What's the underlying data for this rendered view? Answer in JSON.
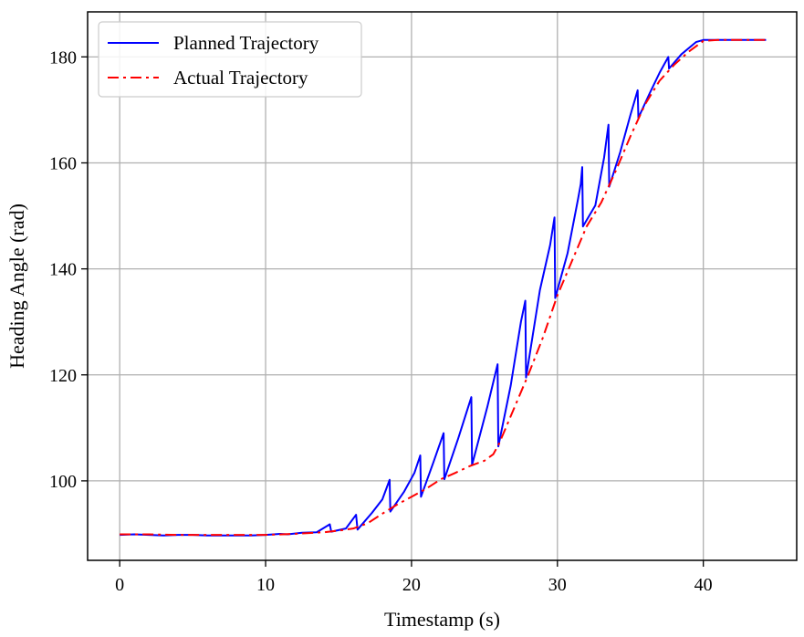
{
  "chart_data": {
    "type": "line",
    "title": "",
    "xlabel": "Timestamp (s)",
    "ylabel": "Heading Angle (rad)",
    "xlim": [
      -2.2,
      46.4
    ],
    "ylim": [
      85,
      188.5
    ],
    "xticks": [
      0,
      10,
      20,
      30,
      40
    ],
    "yticks": [
      100,
      120,
      140,
      160,
      180
    ],
    "grid": true,
    "legend_position": "top-left",
    "series": [
      {
        "name": "Planned Trajectory",
        "color": "#0000ff",
        "style": "solid",
        "points": [
          [
            0,
            89.8
          ],
          [
            1,
            89.9
          ],
          [
            2,
            89.8
          ],
          [
            3,
            89.7
          ],
          [
            4,
            89.8
          ],
          [
            5,
            89.8
          ],
          [
            6,
            89.7
          ],
          [
            7,
            89.7
          ],
          [
            8,
            89.7
          ],
          [
            9,
            89.7
          ],
          [
            10,
            89.8
          ],
          [
            11,
            90.0
          ],
          [
            11.5,
            89.9
          ],
          [
            12.5,
            90.2
          ],
          [
            13.5,
            90.3
          ],
          [
            14.4,
            91.8
          ],
          [
            14.5,
            90.4
          ],
          [
            15.5,
            91.0
          ],
          [
            16.2,
            93.6
          ],
          [
            16.3,
            90.8
          ],
          [
            17.3,
            94.0
          ],
          [
            18.0,
            96.5
          ],
          [
            18.5,
            100.2
          ],
          [
            18.55,
            94.2
          ],
          [
            19.5,
            98.0
          ],
          [
            20.2,
            101.5
          ],
          [
            20.6,
            104.8
          ],
          [
            20.65,
            97.0
          ],
          [
            21.5,
            103.5
          ],
          [
            22.2,
            109.0
          ],
          [
            22.25,
            100.3
          ],
          [
            23.2,
            108.0
          ],
          [
            24.1,
            115.8
          ],
          [
            24.15,
            103.0
          ],
          [
            25.2,
            114.0
          ],
          [
            25.9,
            122.0
          ],
          [
            25.95,
            106.5
          ],
          [
            26.8,
            118.0
          ],
          [
            27.5,
            130.0
          ],
          [
            27.8,
            134.0
          ],
          [
            27.85,
            119.5
          ],
          [
            28.8,
            136.0
          ],
          [
            29.5,
            144.5
          ],
          [
            29.8,
            149.7
          ],
          [
            29.85,
            134.5
          ],
          [
            30.7,
            143.0
          ],
          [
            31.4,
            153.0
          ],
          [
            31.6,
            156.0
          ],
          [
            31.7,
            159.2
          ],
          [
            31.75,
            148.0
          ],
          [
            32.6,
            152.0
          ],
          [
            33.2,
            161.0
          ],
          [
            33.5,
            167.2
          ],
          [
            33.55,
            155.5
          ],
          [
            34.3,
            162.0
          ],
          [
            35.0,
            169.0
          ],
          [
            35.5,
            173.7
          ],
          [
            35.55,
            168.5
          ],
          [
            36.3,
            173.0
          ],
          [
            37.0,
            177.0
          ],
          [
            37.6,
            180.0
          ],
          [
            37.65,
            177.8
          ],
          [
            38.5,
            180.5
          ],
          [
            39.5,
            182.8
          ],
          [
            40,
            183.2
          ],
          [
            41,
            183.2
          ],
          [
            42,
            183.2
          ],
          [
            43,
            183.2
          ],
          [
            44.3,
            183.2
          ]
        ]
      },
      {
        "name": "Actual Trajectory",
        "color": "#ff0000",
        "style": "dashdot",
        "points": [
          [
            0,
            89.9
          ],
          [
            2,
            89.9
          ],
          [
            4,
            89.8
          ],
          [
            6,
            89.8
          ],
          [
            8,
            89.8
          ],
          [
            10,
            89.8
          ],
          [
            12,
            90.0
          ],
          [
            14,
            90.3
          ],
          [
            15,
            90.6
          ],
          [
            16,
            91.0
          ],
          [
            17,
            92.0
          ],
          [
            18,
            93.8
          ],
          [
            19,
            95.5
          ],
          [
            20,
            97.0
          ],
          [
            21,
            98.5
          ],
          [
            22,
            100.3
          ],
          [
            23,
            101.5
          ],
          [
            24,
            102.8
          ],
          [
            25,
            103.8
          ],
          [
            25.6,
            105.0
          ],
          [
            26,
            107.0
          ],
          [
            27,
            113.5
          ],
          [
            28,
            120.0
          ],
          [
            29,
            127.0
          ],
          [
            30,
            135.0
          ],
          [
            31,
            141.5
          ],
          [
            32,
            148.0
          ],
          [
            33,
            152.5
          ],
          [
            34,
            158.5
          ],
          [
            35,
            165.0
          ],
          [
            36,
            171.0
          ],
          [
            37,
            175.5
          ],
          [
            38,
            178.5
          ],
          [
            39,
            181.0
          ],
          [
            40,
            183.0
          ],
          [
            41,
            183.2
          ],
          [
            42,
            183.2
          ],
          [
            43,
            183.2
          ],
          [
            44.3,
            183.2
          ]
        ]
      }
    ]
  }
}
